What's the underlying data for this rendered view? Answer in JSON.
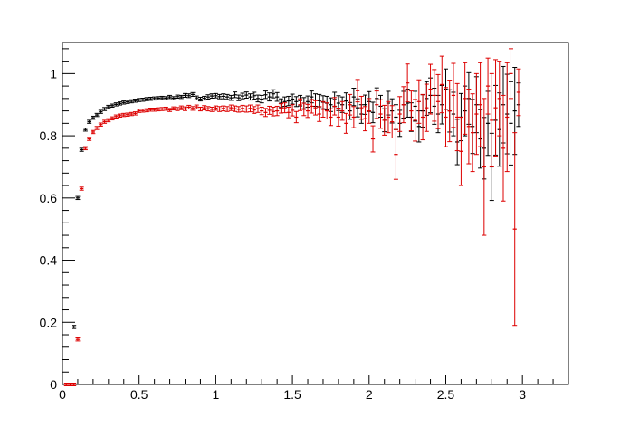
{
  "chart_data": {
    "type": "scatter",
    "title": "",
    "xlabel": "",
    "ylabel": "",
    "xlim": [
      0,
      3.3
    ],
    "ylim": [
      0,
      1.1
    ],
    "grid": false,
    "x_ticks": [
      "0",
      "0.5",
      "1",
      "1.5",
      "2",
      "2.5",
      "3"
    ],
    "x_tick_values": [
      0,
      0.5,
      1,
      1.5,
      2,
      2.5,
      3
    ],
    "y_ticks": [
      "0",
      "0.2",
      "0.4",
      "0.6",
      "0.8",
      "1"
    ],
    "y_tick_values": [
      0,
      0.2,
      0.4,
      0.6,
      0.8,
      1.0
    ],
    "colors": {
      "black_series": "#000000",
      "red_series": "#dd0000"
    },
    "series": [
      {
        "color": "#000000",
        "points": [
          [
            0.075,
            0.185,
            0.005
          ],
          [
            0.1,
            0.6,
            0.005
          ],
          [
            0.125,
            0.755,
            0.005
          ],
          [
            0.15,
            0.82,
            0.005
          ],
          [
            0.175,
            0.845,
            0.005
          ],
          [
            0.2,
            0.858,
            0.005
          ],
          [
            0.225,
            0.867,
            0.005
          ],
          [
            0.25,
            0.877,
            0.005
          ],
          [
            0.275,
            0.886,
            0.005
          ],
          [
            0.3,
            0.893,
            0.005
          ],
          [
            0.325,
            0.897,
            0.005
          ],
          [
            0.35,
            0.901,
            0.005
          ],
          [
            0.375,
            0.904,
            0.005
          ],
          [
            0.4,
            0.907,
            0.005
          ],
          [
            0.425,
            0.909,
            0.005
          ],
          [
            0.45,
            0.911,
            0.005
          ],
          [
            0.475,
            0.913,
            0.005
          ],
          [
            0.5,
            0.915,
            0.005
          ],
          [
            0.525,
            0.916,
            0.005
          ],
          [
            0.55,
            0.918,
            0.005
          ],
          [
            0.575,
            0.919,
            0.005
          ],
          [
            0.6,
            0.92,
            0.005
          ],
          [
            0.625,
            0.921,
            0.005
          ],
          [
            0.65,
            0.922,
            0.005
          ],
          [
            0.675,
            0.921,
            0.005
          ],
          [
            0.7,
            0.925,
            0.005
          ],
          [
            0.725,
            0.921,
            0.005
          ],
          [
            0.75,
            0.926,
            0.005
          ],
          [
            0.775,
            0.925,
            0.005
          ],
          [
            0.8,
            0.93,
            0.006
          ],
          [
            0.825,
            0.929,
            0.006
          ],
          [
            0.85,
            0.933,
            0.006
          ],
          [
            0.875,
            0.922,
            0.006
          ],
          [
            0.9,
            0.918,
            0.006
          ],
          [
            0.925,
            0.921,
            0.006
          ],
          [
            0.95,
            0.925,
            0.007
          ],
          [
            0.975,
            0.928,
            0.007
          ],
          [
            1.0,
            0.929,
            0.007
          ],
          [
            1.025,
            0.926,
            0.007
          ],
          [
            1.05,
            0.927,
            0.008
          ],
          [
            1.075,
            0.925,
            0.008
          ],
          [
            1.1,
            0.922,
            0.008
          ],
          [
            1.125,
            0.932,
            0.009
          ],
          [
            1.15,
            0.922,
            0.009
          ],
          [
            1.175,
            0.928,
            0.009
          ],
          [
            1.2,
            0.931,
            0.01
          ],
          [
            1.225,
            0.925,
            0.01
          ],
          [
            1.25,
            0.929,
            0.011
          ],
          [
            1.275,
            0.92,
            0.011
          ],
          [
            1.3,
            0.918,
            0.012
          ],
          [
            1.325,
            0.932,
            0.012
          ],
          [
            1.35,
            0.925,
            0.013
          ],
          [
            1.375,
            0.935,
            0.013
          ],
          [
            1.4,
            0.925,
            0.014
          ],
          [
            1.425,
            0.905,
            0.014
          ],
          [
            1.45,
            0.91,
            0.015
          ],
          [
            1.475,
            0.912,
            0.015
          ],
          [
            1.5,
            0.918,
            0.016
          ],
          [
            1.525,
            0.91,
            0.016
          ],
          [
            1.55,
            0.913,
            0.017
          ],
          [
            1.575,
            0.905,
            0.018
          ],
          [
            1.6,
            0.91,
            0.018
          ],
          [
            1.625,
            0.925,
            0.019
          ],
          [
            1.65,
            0.915,
            0.02
          ],
          [
            1.675,
            0.913,
            0.02
          ],
          [
            1.7,
            0.908,
            0.021
          ],
          [
            1.725,
            0.905,
            0.022
          ],
          [
            1.75,
            0.9,
            0.022
          ],
          [
            1.775,
            0.917,
            0.023
          ],
          [
            1.8,
            0.905,
            0.024
          ],
          [
            1.825,
            0.9,
            0.025
          ],
          [
            1.85,
            0.912,
            0.026
          ],
          [
            1.875,
            0.88,
            0.027
          ],
          [
            1.9,
            0.925,
            0.028
          ],
          [
            1.925,
            0.89,
            0.029
          ],
          [
            1.95,
            0.87,
            0.03
          ],
          [
            1.975,
            0.9,
            0.031
          ],
          [
            2.0,
            0.91,
            0.032
          ],
          [
            2.025,
            0.875,
            0.033
          ],
          [
            2.05,
            0.92,
            0.034
          ],
          [
            2.075,
            0.895,
            0.035
          ],
          [
            2.1,
            0.85,
            0.037
          ],
          [
            2.125,
            0.905,
            0.038
          ],
          [
            2.15,
            0.88,
            0.039
          ],
          [
            2.175,
            0.86,
            0.04
          ],
          [
            2.2,
            0.84,
            0.042
          ],
          [
            2.225,
            0.9,
            0.043
          ],
          [
            2.25,
            0.905,
            0.045
          ],
          [
            2.275,
            0.86,
            0.046
          ],
          [
            2.3,
            0.895,
            0.048
          ],
          [
            2.325,
            0.83,
            0.05
          ],
          [
            2.35,
            0.88,
            0.052
          ],
          [
            2.375,
            0.92,
            0.054
          ],
          [
            2.4,
            0.93,
            0.056
          ],
          [
            2.425,
            0.895,
            0.058
          ],
          [
            2.45,
            0.87,
            0.06
          ],
          [
            2.475,
            0.9,
            0.062
          ],
          [
            2.5,
            0.95,
            0.065
          ],
          [
            2.525,
            0.88,
            0.068
          ],
          [
            2.55,
            0.87,
            0.07
          ],
          [
            2.575,
            0.78,
            0.073
          ],
          [
            2.6,
            0.86,
            0.076
          ],
          [
            2.625,
            0.88,
            0.08
          ],
          [
            2.65,
            0.92,
            0.083
          ],
          [
            2.675,
            0.83,
            0.087
          ],
          [
            2.7,
            0.9,
            0.09
          ],
          [
            2.725,
            0.79,
            0.094
          ],
          [
            2.75,
            0.76,
            0.099
          ],
          [
            2.775,
            0.84,
            0.103
          ],
          [
            2.8,
            0.7,
            0.108
          ],
          [
            2.825,
            0.85,
            0.112
          ],
          [
            2.85,
            0.82,
            0.118
          ],
          [
            2.875,
            0.9,
            0.123
          ],
          [
            2.9,
            0.87,
            0.128
          ],
          [
            2.925,
            0.84,
            0.134
          ],
          [
            2.95,
            0.88,
            0.14
          ],
          [
            2.975,
            0.9,
            0.07
          ]
        ]
      },
      {
        "color": "#dd0000",
        "points": [
          [
            0.025,
            0.0,
            0.005
          ],
          [
            0.05,
            0.0,
            0.005
          ],
          [
            0.075,
            0.0,
            0.005
          ],
          [
            0.1,
            0.145,
            0.005
          ],
          [
            0.125,
            0.63,
            0.005
          ],
          [
            0.15,
            0.76,
            0.005
          ],
          [
            0.175,
            0.79,
            0.005
          ],
          [
            0.2,
            0.812,
            0.005
          ],
          [
            0.225,
            0.825,
            0.005
          ],
          [
            0.25,
            0.836,
            0.005
          ],
          [
            0.275,
            0.845,
            0.005
          ],
          [
            0.3,
            0.85,
            0.005
          ],
          [
            0.325,
            0.856,
            0.005
          ],
          [
            0.35,
            0.862,
            0.005
          ],
          [
            0.375,
            0.865,
            0.005
          ],
          [
            0.4,
            0.867,
            0.005
          ],
          [
            0.425,
            0.868,
            0.005
          ],
          [
            0.45,
            0.87,
            0.005
          ],
          [
            0.475,
            0.872,
            0.005
          ],
          [
            0.5,
            0.88,
            0.005
          ],
          [
            0.525,
            0.881,
            0.005
          ],
          [
            0.55,
            0.882,
            0.005
          ],
          [
            0.575,
            0.884,
            0.005
          ],
          [
            0.6,
            0.884,
            0.005
          ],
          [
            0.625,
            0.885,
            0.005
          ],
          [
            0.65,
            0.886,
            0.005
          ],
          [
            0.675,
            0.887,
            0.005
          ],
          [
            0.7,
            0.883,
            0.005
          ],
          [
            0.725,
            0.888,
            0.005
          ],
          [
            0.75,
            0.886,
            0.005
          ],
          [
            0.775,
            0.89,
            0.006
          ],
          [
            0.8,
            0.887,
            0.006
          ],
          [
            0.825,
            0.892,
            0.006
          ],
          [
            0.85,
            0.888,
            0.006
          ],
          [
            0.875,
            0.893,
            0.006
          ],
          [
            0.9,
            0.886,
            0.006
          ],
          [
            0.925,
            0.89,
            0.007
          ],
          [
            0.95,
            0.887,
            0.007
          ],
          [
            0.975,
            0.885,
            0.007
          ],
          [
            1.0,
            0.889,
            0.007
          ],
          [
            1.025,
            0.886,
            0.008
          ],
          [
            1.05,
            0.888,
            0.008
          ],
          [
            1.075,
            0.886,
            0.008
          ],
          [
            1.1,
            0.89,
            0.009
          ],
          [
            1.125,
            0.887,
            0.009
          ],
          [
            1.15,
            0.885,
            0.009
          ],
          [
            1.175,
            0.888,
            0.01
          ],
          [
            1.2,
            0.886,
            0.01
          ],
          [
            1.225,
            0.888,
            0.011
          ],
          [
            1.25,
            0.883,
            0.011
          ],
          [
            1.275,
            0.887,
            0.012
          ],
          [
            1.3,
            0.88,
            0.012
          ],
          [
            1.325,
            0.875,
            0.013
          ],
          [
            1.35,
            0.882,
            0.013
          ],
          [
            1.375,
            0.878,
            0.014
          ],
          [
            1.4,
            0.88,
            0.015
          ],
          [
            1.425,
            0.888,
            0.015
          ],
          [
            1.45,
            0.89,
            0.016
          ],
          [
            1.475,
            0.875,
            0.017
          ],
          [
            1.5,
            0.882,
            0.018
          ],
          [
            1.525,
            0.86,
            0.018
          ],
          [
            1.55,
            0.9,
            0.019
          ],
          [
            1.575,
            0.885,
            0.02
          ],
          [
            1.6,
            0.88,
            0.021
          ],
          [
            1.625,
            0.895,
            0.022
          ],
          [
            1.65,
            0.89,
            0.023
          ],
          [
            1.675,
            0.87,
            0.024
          ],
          [
            1.7,
            0.885,
            0.025
          ],
          [
            1.725,
            0.88,
            0.026
          ],
          [
            1.75,
            0.86,
            0.027
          ],
          [
            1.775,
            0.895,
            0.028
          ],
          [
            1.8,
            0.86,
            0.029
          ],
          [
            1.825,
            0.88,
            0.03
          ],
          [
            1.85,
            0.84,
            0.032
          ],
          [
            1.875,
            0.9,
            0.033
          ],
          [
            1.9,
            0.86,
            0.034
          ],
          [
            1.925,
            0.945,
            0.036
          ],
          [
            1.95,
            0.89,
            0.037
          ],
          [
            1.975,
            0.855,
            0.039
          ],
          [
            2.0,
            0.88,
            0.04
          ],
          [
            2.025,
            0.79,
            0.042
          ],
          [
            2.05,
            0.9,
            0.044
          ],
          [
            2.075,
            0.87,
            0.046
          ],
          [
            2.1,
            0.85,
            0.048
          ],
          [
            2.125,
            0.86,
            0.05
          ],
          [
            2.15,
            0.845,
            0.052
          ],
          [
            2.175,
            0.74,
            0.08
          ],
          [
            2.2,
            0.87,
            0.056
          ],
          [
            2.225,
            0.9,
            0.058
          ],
          [
            2.25,
            0.97,
            0.061
          ],
          [
            2.275,
            0.88,
            0.064
          ],
          [
            2.3,
            0.85,
            0.067
          ],
          [
            2.325,
            0.91,
            0.07
          ],
          [
            2.35,
            0.86,
            0.073
          ],
          [
            2.375,
            0.89,
            0.076
          ],
          [
            2.4,
            0.95,
            0.08
          ],
          [
            2.425,
            0.93,
            0.083
          ],
          [
            2.45,
            0.91,
            0.087
          ],
          [
            2.475,
            0.965,
            0.091
          ],
          [
            2.5,
            0.86,
            0.095
          ],
          [
            2.525,
            0.88,
            0.099
          ],
          [
            2.55,
            0.93,
            0.103
          ],
          [
            2.575,
            0.86,
            0.108
          ],
          [
            2.6,
            0.75,
            0.11
          ],
          [
            2.625,
            0.92,
            0.115
          ],
          [
            2.65,
            0.83,
            0.12
          ],
          [
            2.675,
            0.81,
            0.125
          ],
          [
            2.7,
            0.87,
            0.13
          ],
          [
            2.725,
            0.9,
            0.135
          ],
          [
            2.75,
            0.7,
            0.22
          ],
          [
            2.775,
            0.96,
            0.09
          ],
          [
            2.8,
            0.85,
            0.15
          ],
          [
            2.825,
            0.89,
            0.155
          ],
          [
            2.85,
            0.92,
            0.12
          ],
          [
            2.875,
            0.76,
            0.17
          ],
          [
            2.9,
            0.86,
            0.175
          ],
          [
            2.925,
            1.0,
            0.08
          ],
          [
            2.95,
            0.5,
            0.31
          ],
          [
            2.975,
            0.94,
            0.075
          ]
        ]
      }
    ]
  }
}
